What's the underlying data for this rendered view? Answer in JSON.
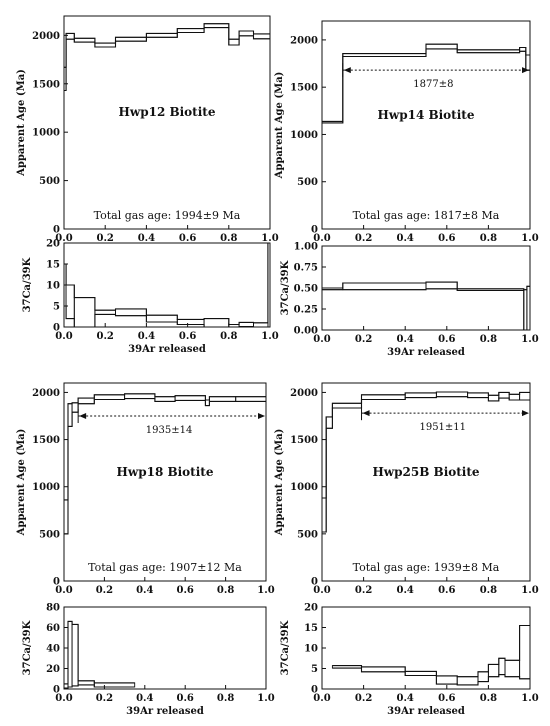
{
  "chart_data": [
    {
      "type": "step",
      "panel": "age",
      "title": "Hwp12 Biotite",
      "ylabel": "Apparent Age (Ma)",
      "xlabel": "",
      "gas_age": "Total gas age: 1994±9 Ma",
      "plateau": null,
      "xlim": [
        0,
        1
      ],
      "ylim": [
        0,
        2200
      ],
      "xticks": [
        "0.0",
        "0.2",
        "0.4",
        "0.6",
        "0.8",
        "1.0"
      ],
      "yticks": [
        "0",
        "500",
        "1000",
        "1500",
        "2000"
      ],
      "steps": [
        {
          "x0": 0.0,
          "x1": 0.01,
          "y": 1550,
          "err": 120
        },
        {
          "x0": 0.01,
          "x1": 0.05,
          "y": 1990,
          "err": 30
        },
        {
          "x0": 0.05,
          "x1": 0.15,
          "y": 1950,
          "err": 20
        },
        {
          "x0": 0.15,
          "x1": 0.25,
          "y": 1900,
          "err": 20
        },
        {
          "x0": 0.25,
          "x1": 0.4,
          "y": 1960,
          "err": 20
        },
        {
          "x0": 0.4,
          "x1": 0.55,
          "y": 2000,
          "err": 20
        },
        {
          "x0": 0.55,
          "x1": 0.68,
          "y": 2050,
          "err": 20
        },
        {
          "x0": 0.68,
          "x1": 0.8,
          "y": 2100,
          "err": 20
        },
        {
          "x0": 0.8,
          "x1": 0.85,
          "y": 1930,
          "err": 30
        },
        {
          "x0": 0.85,
          "x1": 0.92,
          "y": 2020,
          "err": 25
        },
        {
          "x0": 0.92,
          "x1": 1.0,
          "y": 1990,
          "err": 25
        }
      ]
    },
    {
      "type": "step",
      "panel": "ratio",
      "ylabel": "37Ca/39K",
      "xlabel": "39Ar released",
      "xlim": [
        0,
        1
      ],
      "ylim": [
        0,
        20
      ],
      "xticks": [
        "0.0",
        "0.2",
        "0.4",
        "0.6",
        "0.8",
        "1.0"
      ],
      "yticks": [
        "0",
        "5",
        "10",
        "15",
        "20"
      ],
      "steps": [
        {
          "x0": 0.0,
          "x1": 0.01,
          "y": 10,
          "err": 5
        },
        {
          "x0": 0.01,
          "x1": 0.05,
          "y": 6,
          "err": 4
        },
        {
          "x0": 0.05,
          "x1": 0.15,
          "y": 3.5,
          "err": 3.5
        },
        {
          "x0": 0.15,
          "x1": 0.25,
          "y": 3.5,
          "err": 0.5
        },
        {
          "x0": 0.25,
          "x1": 0.4,
          "y": 3.5,
          "err": 0.8
        },
        {
          "x0": 0.4,
          "x1": 0.55,
          "y": 2.0,
          "err": 0.8
        },
        {
          "x0": 0.55,
          "x1": 0.68,
          "y": 1.2,
          "err": 0.6
        },
        {
          "x0": 0.68,
          "x1": 0.8,
          "y": 1.0,
          "err": 1.0
        },
        {
          "x0": 0.8,
          "x1": 0.85,
          "y": 0.3,
          "err": 0.3
        },
        {
          "x0": 0.85,
          "x1": 0.92,
          "y": 0.6,
          "err": 0.5
        },
        {
          "x0": 0.92,
          "x1": 0.99,
          "y": 0.5,
          "err": 0.5
        },
        {
          "x0": 0.99,
          "x1": 1.0,
          "y": 10,
          "err": 10
        }
      ]
    },
    {
      "type": "step",
      "panel": "age",
      "title": "Hwp14 Biotite",
      "ylabel": "Apparent Age (Ma)",
      "xlabel": "",
      "gas_age": "Total gas age: 1817±8 Ma",
      "plateau": {
        "label": "1877±8",
        "x0": 0.1,
        "x1": 1.0,
        "y": 1680
      },
      "xlim": [
        0,
        1
      ],
      "ylim": [
        0,
        2200
      ],
      "xticks": [
        "0.0",
        "0.2",
        "0.4",
        "0.6",
        "0.8",
        "1.0"
      ],
      "yticks": [
        "0",
        "500",
        "1000",
        "1500",
        "2000"
      ],
      "steps": [
        {
          "x0": 0.0,
          "x1": 0.1,
          "y": 1130,
          "err": 8
        },
        {
          "x0": 0.1,
          "x1": 0.5,
          "y": 1840,
          "err": 15
        },
        {
          "x0": 0.5,
          "x1": 0.65,
          "y": 1930,
          "err": 25
        },
        {
          "x0": 0.65,
          "x1": 0.95,
          "y": 1880,
          "err": 15
        },
        {
          "x0": 0.95,
          "x1": 0.98,
          "y": 1900,
          "err": 20
        },
        {
          "x0": 0.98,
          "x1": 1.0,
          "y": 1760,
          "err": 80
        }
      ]
    },
    {
      "type": "step",
      "panel": "ratio",
      "ylabel": "37Ca/39K",
      "xlabel": "39Ar released",
      "xlim": [
        0,
        1
      ],
      "ylim": [
        0,
        1
      ],
      "xticks": [
        "0.0",
        "0.2",
        "0.4",
        "0.6",
        "0.8",
        "1.0"
      ],
      "yticks": [
        "0.00",
        "0.25",
        "0.50",
        "0.75",
        "1.00"
      ],
      "steps": [
        {
          "x0": 0.0,
          "x1": 0.1,
          "y": 0.49,
          "err": 0.01
        },
        {
          "x0": 0.1,
          "x1": 0.5,
          "y": 0.52,
          "err": 0.04
        },
        {
          "x0": 0.5,
          "x1": 0.65,
          "y": 0.53,
          "err": 0.04
        },
        {
          "x0": 0.65,
          "x1": 0.97,
          "y": 0.48,
          "err": 0.01
        },
        {
          "x0": 0.97,
          "x1": 0.985,
          "y": 0.24,
          "err": 0.24
        },
        {
          "x0": 0.985,
          "x1": 1.0,
          "y": 0.26,
          "err": 0.26
        }
      ]
    },
    {
      "type": "step",
      "panel": "age",
      "title": "Hwp18 Biotite",
      "ylabel": "Apparent Age (Ma)",
      "xlabel": "",
      "gas_age": "Total gas age: 1907±12 Ma",
      "plateau": {
        "label": "1935±14",
        "x0": 0.07,
        "x1": 1.0,
        "y": 1750
      },
      "xlim": [
        0,
        1
      ],
      "ylim": [
        0,
        2100
      ],
      "xticks": [
        "0.0",
        "0.2",
        "0.4",
        "0.6",
        "0.8",
        "1.0"
      ],
      "yticks": [
        "0",
        "500",
        "1000",
        "1500",
        "2000"
      ],
      "steps": [
        {
          "x0": 0.0,
          "x1": 0.02,
          "y": 680,
          "err": 180
        },
        {
          "x0": 0.02,
          "x1": 0.04,
          "y": 1760,
          "err": 120
        },
        {
          "x0": 0.04,
          "x1": 0.07,
          "y": 1840,
          "err": 50
        },
        {
          "x0": 0.07,
          "x1": 0.15,
          "y": 1910,
          "err": 30
        },
        {
          "x0": 0.15,
          "x1": 0.3,
          "y": 1950,
          "err": 25
        },
        {
          "x0": 0.3,
          "x1": 0.45,
          "y": 1960,
          "err": 25
        },
        {
          "x0": 0.45,
          "x1": 0.55,
          "y": 1930,
          "err": 25
        },
        {
          "x0": 0.55,
          "x1": 0.7,
          "y": 1940,
          "err": 25
        },
        {
          "x0": 0.7,
          "x1": 0.72,
          "y": 1890,
          "err": 30
        },
        {
          "x0": 0.72,
          "x1": 0.85,
          "y": 1930,
          "err": 25
        },
        {
          "x0": 0.85,
          "x1": 1.0,
          "y": 1930,
          "err": 25
        }
      ]
    },
    {
      "type": "step",
      "panel": "ratio",
      "ylabel": "37Ca/39K",
      "xlabel": "39Ar released",
      "xlim": [
        0,
        1
      ],
      "ylim": [
        0,
        80
      ],
      "xticks": [
        "0.0",
        "0.2",
        "0.4",
        "0.6",
        "0.8",
        "1.0"
      ],
      "yticks": [
        "0",
        "20",
        "40",
        "60",
        "80"
      ],
      "steps": [
        {
          "x0": 0.0,
          "x1": 0.02,
          "y": 3,
          "err": 2
        },
        {
          "x0": 0.02,
          "x1": 0.04,
          "y": 34,
          "err": 32
        },
        {
          "x0": 0.04,
          "x1": 0.07,
          "y": 33,
          "err": 30
        },
        {
          "x0": 0.07,
          "x1": 0.15,
          "y": 6,
          "err": 2
        },
        {
          "x0": 0.15,
          "x1": 0.35,
          "y": 4,
          "err": 2
        }
      ]
    },
    {
      "type": "step",
      "panel": "age",
      "title": "Hwp25B Biotite",
      "ylabel": "Apparent Age (Ma)",
      "xlabel": "",
      "gas_age": "Total gas age: 1939±8 Ma",
      "plateau": {
        "label": "1951±11",
        "x0": 0.19,
        "x1": 1.0,
        "y": 1780
      },
      "xlim": [
        0,
        1
      ],
      "ylim": [
        0,
        2100
      ],
      "xticks": [
        "0.0",
        "0.2",
        "0.4",
        "0.6",
        "0.8",
        "1.0"
      ],
      "yticks": [
        "0",
        "500",
        "1000",
        "1500",
        "2000"
      ],
      "steps": [
        {
          "x0": 0.0,
          "x1": 0.02,
          "y": 700,
          "err": 180
        },
        {
          "x0": 0.02,
          "x1": 0.05,
          "y": 1680,
          "err": 60
        },
        {
          "x0": 0.05,
          "x1": 0.19,
          "y": 1860,
          "err": 25
        },
        {
          "x0": 0.19,
          "x1": 0.4,
          "y": 1950,
          "err": 25
        },
        {
          "x0": 0.4,
          "x1": 0.55,
          "y": 1970,
          "err": 25
        },
        {
          "x0": 0.55,
          "x1": 0.7,
          "y": 1980,
          "err": 25
        },
        {
          "x0": 0.7,
          "x1": 0.8,
          "y": 1970,
          "err": 25
        },
        {
          "x0": 0.8,
          "x1": 0.85,
          "y": 1940,
          "err": 30
        },
        {
          "x0": 0.85,
          "x1": 0.9,
          "y": 1970,
          "err": 30
        },
        {
          "x0": 0.9,
          "x1": 0.95,
          "y": 1950,
          "err": 30
        },
        {
          "x0": 0.95,
          "x1": 1.0,
          "y": 1960,
          "err": 40
        }
      ]
    },
    {
      "type": "step",
      "panel": "ratio",
      "ylabel": "37Ca/39K",
      "xlabel": "39Ar released",
      "xlim": [
        0,
        1
      ],
      "ylim": [
        0,
        20
      ],
      "xticks": [
        "0.0",
        "0.2",
        "0.4",
        "0.6",
        "0.8",
        "1.0"
      ],
      "yticks": [
        "0",
        "5",
        "10",
        "15",
        "20"
      ],
      "steps": [
        {
          "x0": 0.05,
          "x1": 0.19,
          "y": 5.4,
          "err": 0.3
        },
        {
          "x0": 0.19,
          "x1": 0.4,
          "y": 4.8,
          "err": 0.6
        },
        {
          "x0": 0.4,
          "x1": 0.55,
          "y": 3.8,
          "err": 0.5
        },
        {
          "x0": 0.55,
          "x1": 0.65,
          "y": 2.2,
          "err": 1.0
        },
        {
          "x0": 0.65,
          "x1": 0.75,
          "y": 2.0,
          "err": 1.0
        },
        {
          "x0": 0.75,
          "x1": 0.8,
          "y": 3.0,
          "err": 1.2
        },
        {
          "x0": 0.8,
          "x1": 0.85,
          "y": 4.5,
          "err": 1.5
        },
        {
          "x0": 0.85,
          "x1": 0.88,
          "y": 5.5,
          "err": 2.0
        },
        {
          "x0": 0.88,
          "x1": 0.95,
          "y": 5.0,
          "err": 2.0
        },
        {
          "x0": 0.95,
          "x1": 1.0,
          "y": 9.0,
          "err": 6.5
        }
      ]
    }
  ]
}
